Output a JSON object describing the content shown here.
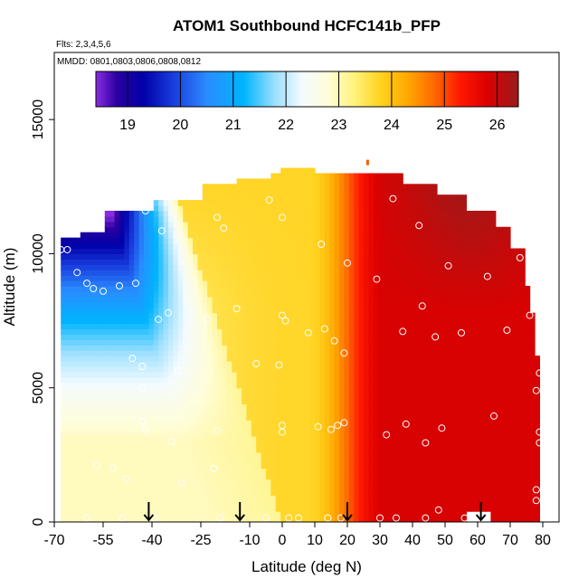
{
  "chart_data": {
    "type": "heatmap",
    "title": "ATOM1 Southbound HCFC141b_PFP",
    "subtitle_flights": "Flts: 2,3,4,5,6",
    "subtitle_dates": "MMDD: 0801,0803,0806,0808,0812",
    "xlabel": "Latitude (deg N)",
    "ylabel": "Altitude (m)",
    "xlim": [
      -70,
      85
    ],
    "ylim": [
      0,
      17500
    ],
    "x_ticks": [
      -70,
      -55,
      -40,
      -25,
      -10,
      0,
      10,
      20,
      30,
      40,
      50,
      60,
      70,
      80
    ],
    "x_tick_labels": [
      "-70",
      "-55",
      "-40",
      "-25",
      "-10",
      "0",
      "10",
      "20",
      "30",
      "40",
      "50",
      "60",
      "70",
      "80"
    ],
    "y_ticks": [
      0,
      5000,
      10000,
      15000
    ],
    "y_tick_labels": [
      "0",
      "5000",
      "10000",
      "15000"
    ],
    "colorbar": {
      "min": 18.4,
      "max": 26.4,
      "ticks": [
        19,
        20,
        21,
        22,
        23,
        24,
        25,
        26
      ],
      "tick_labels": [
        "19",
        "20",
        "21",
        "22",
        "23",
        "24",
        "25",
        "26"
      ],
      "stops": [
        {
          "v": 18.4,
          "c": "#8a2be2"
        },
        {
          "v": 18.8,
          "c": "#2a00a0"
        },
        {
          "v": 19.3,
          "c": "#0000a8"
        },
        {
          "v": 19.9,
          "c": "#1a40e0"
        },
        {
          "v": 20.5,
          "c": "#2a8cff"
        },
        {
          "v": 21.2,
          "c": "#00b4ff"
        },
        {
          "v": 21.8,
          "c": "#9ee0ff"
        },
        {
          "v": 22.3,
          "c": "#f4fbff"
        },
        {
          "v": 22.8,
          "c": "#fffdd8"
        },
        {
          "v": 23.3,
          "c": "#fff27a"
        },
        {
          "v": 23.8,
          "c": "#ffd21e"
        },
        {
          "v": 24.3,
          "c": "#ffa800"
        },
        {
          "v": 24.8,
          "c": "#ff6a00"
        },
        {
          "v": 25.3,
          "c": "#ff1800"
        },
        {
          "v": 25.8,
          "c": "#dd0000"
        },
        {
          "v": 26.4,
          "c": "#9b1b1b"
        }
      ]
    },
    "profile_latitudes": [
      -41,
      -13,
      20,
      61
    ],
    "observations": [
      {
        "lat": -68,
        "alt": 10150
      },
      {
        "lat": -66,
        "alt": 10150
      },
      {
        "lat": -63,
        "alt": 9300
      },
      {
        "lat": -60,
        "alt": 8900
      },
      {
        "lat": -55,
        "alt": 8600
      },
      {
        "lat": -50,
        "alt": 8800
      },
      {
        "lat": -45,
        "alt": 8900
      },
      {
        "lat": -58,
        "alt": 8700
      },
      {
        "lat": -42,
        "alt": 11600
      },
      {
        "lat": -37,
        "alt": 10850
      },
      {
        "lat": -20,
        "alt": 11350
      },
      {
        "lat": -18,
        "alt": 10950
      },
      {
        "lat": -4,
        "alt": 12000
      },
      {
        "lat": 0,
        "alt": 11350
      },
      {
        "lat": 12,
        "alt": 10350
      },
      {
        "lat": 20,
        "alt": 9650
      },
      {
        "lat": 29,
        "alt": 9050
      },
      {
        "lat": 34,
        "alt": 12050
      },
      {
        "lat": 42,
        "alt": 11050
      },
      {
        "lat": 51,
        "alt": 9550
      },
      {
        "lat": 63,
        "alt": 9150
      },
      {
        "lat": 70,
        "alt": 11350
      },
      {
        "lat": 73,
        "alt": 9850
      },
      {
        "lat": 76,
        "alt": 7700
      },
      {
        "lat": -38,
        "alt": 7550
      },
      {
        "lat": -35,
        "alt": 7800
      },
      {
        "lat": -23,
        "alt": 7550
      },
      {
        "lat": -14,
        "alt": 7950
      },
      {
        "lat": 0,
        "alt": 7700
      },
      {
        "lat": 1,
        "alt": 7500
      },
      {
        "lat": 8,
        "alt": 7050
      },
      {
        "lat": 13,
        "alt": 7200
      },
      {
        "lat": 16,
        "alt": 6750
      },
      {
        "lat": 19,
        "alt": 6300
      },
      {
        "lat": 37,
        "alt": 7100
      },
      {
        "lat": 43,
        "alt": 8050
      },
      {
        "lat": 47,
        "alt": 6900
      },
      {
        "lat": 55,
        "alt": 7050
      },
      {
        "lat": 69,
        "alt": 7150
      },
      {
        "lat": -46,
        "alt": 6100
      },
      {
        "lat": -43,
        "alt": 5800
      },
      {
        "lat": -43,
        "alt": 5000
      },
      {
        "lat": -32,
        "alt": 5650
      },
      {
        "lat": -8,
        "alt": 5900
      },
      {
        "lat": -1,
        "alt": 5850
      },
      {
        "lat": 79,
        "alt": 5550
      },
      {
        "lat": 78,
        "alt": 4900
      },
      {
        "lat": -43,
        "alt": 3750
      },
      {
        "lat": -42,
        "alt": 3450
      },
      {
        "lat": -34,
        "alt": 3000
      },
      {
        "lat": -20,
        "alt": 3400
      },
      {
        "lat": 0,
        "alt": 3600
      },
      {
        "lat": 0,
        "alt": 3350
      },
      {
        "lat": 11,
        "alt": 3550
      },
      {
        "lat": 15,
        "alt": 3450
      },
      {
        "lat": 17,
        "alt": 3600
      },
      {
        "lat": 19,
        "alt": 3700
      },
      {
        "lat": 32,
        "alt": 3250
      },
      {
        "lat": 38,
        "alt": 3650
      },
      {
        "lat": 44,
        "alt": 2950
      },
      {
        "lat": 49,
        "alt": 3500
      },
      {
        "lat": 65,
        "alt": 3950
      },
      {
        "lat": 79,
        "alt": 3350
      },
      {
        "lat": 79,
        "alt": 2950
      },
      {
        "lat": -69,
        "alt": 3050
      },
      {
        "lat": -57,
        "alt": 2100
      },
      {
        "lat": -52,
        "alt": 2000
      },
      {
        "lat": -48,
        "alt": 1600
      },
      {
        "lat": -31,
        "alt": 1450
      },
      {
        "lat": -21,
        "alt": 2000
      },
      {
        "lat": 78,
        "alt": 1200
      },
      {
        "lat": 78,
        "alt": 800
      },
      {
        "lat": -60,
        "alt": 150
      },
      {
        "lat": -49,
        "alt": 150
      },
      {
        "lat": -39,
        "alt": 150
      },
      {
        "lat": -19,
        "alt": 150
      },
      {
        "lat": -5,
        "alt": 150
      },
      {
        "lat": 2,
        "alt": 150
      },
      {
        "lat": 5,
        "alt": 150
      },
      {
        "lat": 14,
        "alt": 150
      },
      {
        "lat": 18,
        "alt": 150
      },
      {
        "lat": 30,
        "alt": 150
      },
      {
        "lat": 35,
        "alt": 150
      },
      {
        "lat": 44,
        "alt": 150
      },
      {
        "lat": 48,
        "alt": 450
      },
      {
        "lat": 56,
        "alt": 150
      }
    ]
  }
}
